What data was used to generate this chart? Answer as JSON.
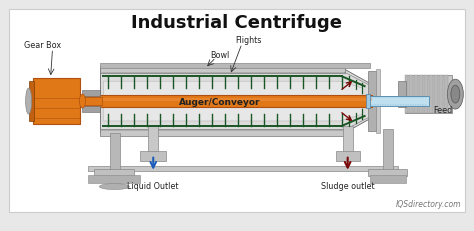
{
  "title": "Industrial Centrifuge",
  "title_fontsize": 13,
  "title_fontweight": "bold",
  "bg_color": "#e8e8e8",
  "white": "#ffffff",
  "gray_light": "#c8c8c8",
  "gray_mid": "#a0a0a0",
  "gray_dark": "#606060",
  "orange": "#e07818",
  "orange_dark": "#b05010",
  "green_dark": "#1a5525",
  "blue_arrow": "#1a5cb8",
  "dark_red": "#7a0808",
  "light_blue": "#c0e0f0",
  "teal": "#1a6b50",
  "panel_bg": "#f2f2f2",
  "labels": {
    "gear_box": "Gear Box",
    "flights": "Flights",
    "auger": "Auger/Conveyor",
    "bowl": "Bowl",
    "feed": "Feed",
    "liquid_outlet": "Liquid Outlet",
    "sludge_outlet": "Sludge outlet",
    "watermark": "IQSdirectory.com"
  },
  "figsize": [
    4.74,
    2.32
  ],
  "dpi": 100
}
